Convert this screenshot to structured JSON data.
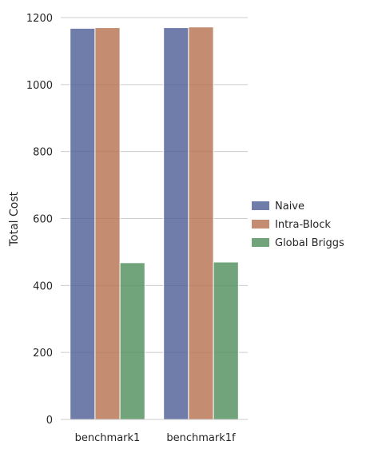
{
  "chart_data": {
    "type": "bar",
    "title": "",
    "xlabel": "",
    "ylabel": "Total Cost",
    "ylim": [
      0,
      1200
    ],
    "yticks": [
      0,
      200,
      400,
      600,
      800,
      1000,
      1200
    ],
    "categories": [
      "benchmark1",
      "benchmark1f"
    ],
    "series": [
      {
        "name": "Naive",
        "color": "#4c5b94",
        "values": [
          1168,
          1170
        ]
      },
      {
        "name": "Intra-Block",
        "color": "#b5704f",
        "values": [
          1170,
          1172
        ]
      },
      {
        "name": "Global Briggs",
        "color": "#4e8d5a",
        "values": [
          468,
          470
        ]
      }
    ],
    "grid": "horizontal",
    "legend": "right"
  }
}
